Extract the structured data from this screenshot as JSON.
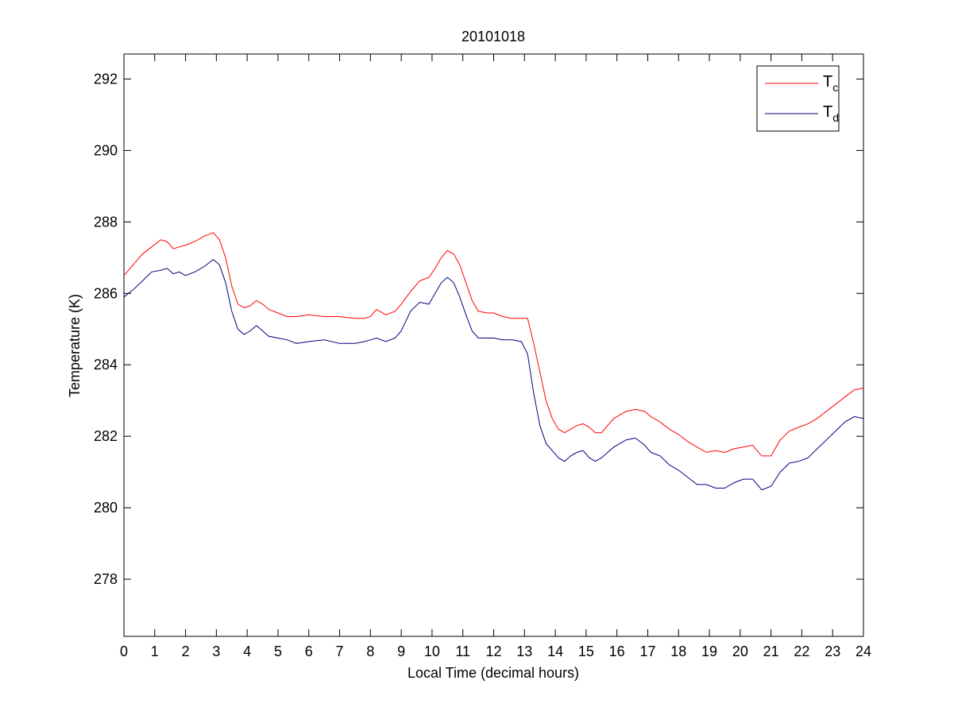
{
  "chart_data": {
    "type": "line",
    "title": "20101018",
    "xlabel": "Local Time (decimal hours)",
    "ylabel": "Temperature (K)",
    "xlim": [
      0,
      24
    ],
    "ylim": [
      276.4,
      292.7
    ],
    "xticks": [
      0,
      1,
      2,
      3,
      4,
      5,
      6,
      7,
      8,
      9,
      10,
      11,
      12,
      13,
      14,
      15,
      16,
      17,
      18,
      19,
      20,
      21,
      22,
      23,
      24
    ],
    "yticks": [
      278,
      280,
      282,
      284,
      286,
      288,
      290,
      292
    ],
    "grid": false,
    "legend_position": "top-right",
    "series": [
      {
        "legend_main": "T",
        "legend_sub": "c",
        "color": "#ff0000",
        "x": [
          0,
          0.3,
          0.6,
          0.9,
          1.2,
          1.4,
          1.6,
          1.8,
          2.0,
          2.3,
          2.6,
          2.9,
          3.1,
          3.3,
          3.5,
          3.7,
          3.9,
          4.1,
          4.3,
          4.5,
          4.7,
          5.0,
          5.3,
          5.6,
          6.0,
          6.5,
          7.0,
          7.5,
          7.8,
          8.0,
          8.2,
          8.5,
          8.8,
          9.0,
          9.3,
          9.6,
          9.9,
          10.1,
          10.3,
          10.5,
          10.7,
          10.9,
          11.1,
          11.3,
          11.5,
          11.8,
          12.0,
          12.3,
          12.6,
          12.9,
          13.1,
          13.3,
          13.5,
          13.7,
          13.9,
          14.1,
          14.3,
          14.5,
          14.7,
          14.9,
          15.1,
          15.3,
          15.5,
          15.7,
          15.9,
          16.1,
          16.3,
          16.6,
          16.9,
          17.1,
          17.4,
          17.7,
          18.0,
          18.3,
          18.6,
          18.9,
          19.2,
          19.5,
          19.8,
          20.1,
          20.4,
          20.7,
          21.0,
          21.3,
          21.6,
          21.9,
          22.2,
          22.5,
          22.8,
          23.1,
          23.4,
          23.7,
          24.0
        ],
        "values": [
          286.5,
          286.8,
          287.1,
          287.3,
          287.5,
          287.45,
          287.25,
          287.3,
          287.35,
          287.45,
          287.6,
          287.7,
          287.5,
          287.0,
          286.2,
          285.7,
          285.6,
          285.65,
          285.8,
          285.7,
          285.55,
          285.45,
          285.35,
          285.35,
          285.4,
          285.35,
          285.35,
          285.3,
          285.3,
          285.35,
          285.55,
          285.4,
          285.5,
          285.7,
          286.05,
          286.35,
          286.45,
          286.7,
          287.0,
          287.2,
          287.1,
          286.8,
          286.3,
          285.8,
          285.5,
          285.45,
          285.45,
          285.35,
          285.3,
          285.3,
          285.3,
          284.6,
          283.8,
          283.0,
          282.5,
          282.2,
          282.1,
          282.2,
          282.3,
          282.35,
          282.25,
          282.1,
          282.1,
          282.3,
          282.5,
          282.6,
          282.7,
          282.75,
          282.7,
          282.55,
          282.4,
          282.2,
          282.05,
          281.85,
          281.7,
          281.55,
          281.6,
          281.55,
          281.65,
          281.7,
          281.75,
          281.45,
          281.45,
          281.9,
          282.15,
          282.25,
          282.35,
          282.5,
          282.7,
          282.9,
          283.1,
          283.3,
          283.35
        ]
      },
      {
        "legend_main": "T",
        "legend_sub": "d",
        "color": "#000080",
        "x": [
          0,
          0.3,
          0.6,
          0.9,
          1.2,
          1.4,
          1.6,
          1.8,
          2.0,
          2.3,
          2.6,
          2.9,
          3.1,
          3.3,
          3.5,
          3.7,
          3.9,
          4.1,
          4.3,
          4.5,
          4.7,
          5.0,
          5.3,
          5.6,
          6.0,
          6.5,
          7.0,
          7.5,
          7.8,
          8.0,
          8.2,
          8.5,
          8.8,
          9.0,
          9.3,
          9.6,
          9.9,
          10.1,
          10.3,
          10.5,
          10.7,
          10.9,
          11.1,
          11.3,
          11.5,
          11.8,
          12.0,
          12.3,
          12.6,
          12.9,
          13.1,
          13.3,
          13.5,
          13.7,
          13.9,
          14.1,
          14.3,
          14.5,
          14.7,
          14.9,
          15.1,
          15.3,
          15.5,
          15.7,
          15.9,
          16.1,
          16.3,
          16.6,
          16.9,
          17.1,
          17.4,
          17.7,
          18.0,
          18.3,
          18.6,
          18.9,
          19.2,
          19.5,
          19.8,
          20.1,
          20.4,
          20.7,
          21.0,
          21.3,
          21.6,
          21.9,
          22.2,
          22.5,
          22.8,
          23.1,
          23.4,
          23.7,
          24.0
        ],
        "values": [
          285.9,
          286.1,
          286.35,
          286.6,
          286.65,
          286.7,
          286.55,
          286.6,
          286.5,
          286.6,
          286.75,
          286.95,
          286.8,
          286.3,
          285.5,
          285.0,
          284.85,
          284.95,
          285.1,
          284.95,
          284.8,
          284.75,
          284.7,
          284.6,
          284.65,
          284.7,
          284.6,
          284.6,
          284.65,
          284.7,
          284.75,
          284.65,
          284.75,
          284.95,
          285.5,
          285.75,
          285.7,
          286.0,
          286.3,
          286.45,
          286.3,
          285.9,
          285.4,
          284.95,
          284.75,
          284.75,
          284.75,
          284.7,
          284.7,
          284.65,
          284.3,
          283.2,
          282.3,
          281.8,
          281.6,
          281.4,
          281.3,
          281.45,
          281.55,
          281.6,
          281.4,
          281.3,
          281.4,
          281.55,
          281.7,
          281.8,
          281.9,
          281.95,
          281.75,
          281.55,
          281.45,
          281.2,
          281.05,
          280.85,
          280.65,
          280.65,
          280.55,
          280.55,
          280.7,
          280.8,
          280.8,
          280.5,
          280.6,
          281.0,
          281.25,
          281.3,
          281.4,
          281.65,
          281.9,
          282.15,
          282.4,
          282.55,
          282.5
        ]
      }
    ]
  }
}
